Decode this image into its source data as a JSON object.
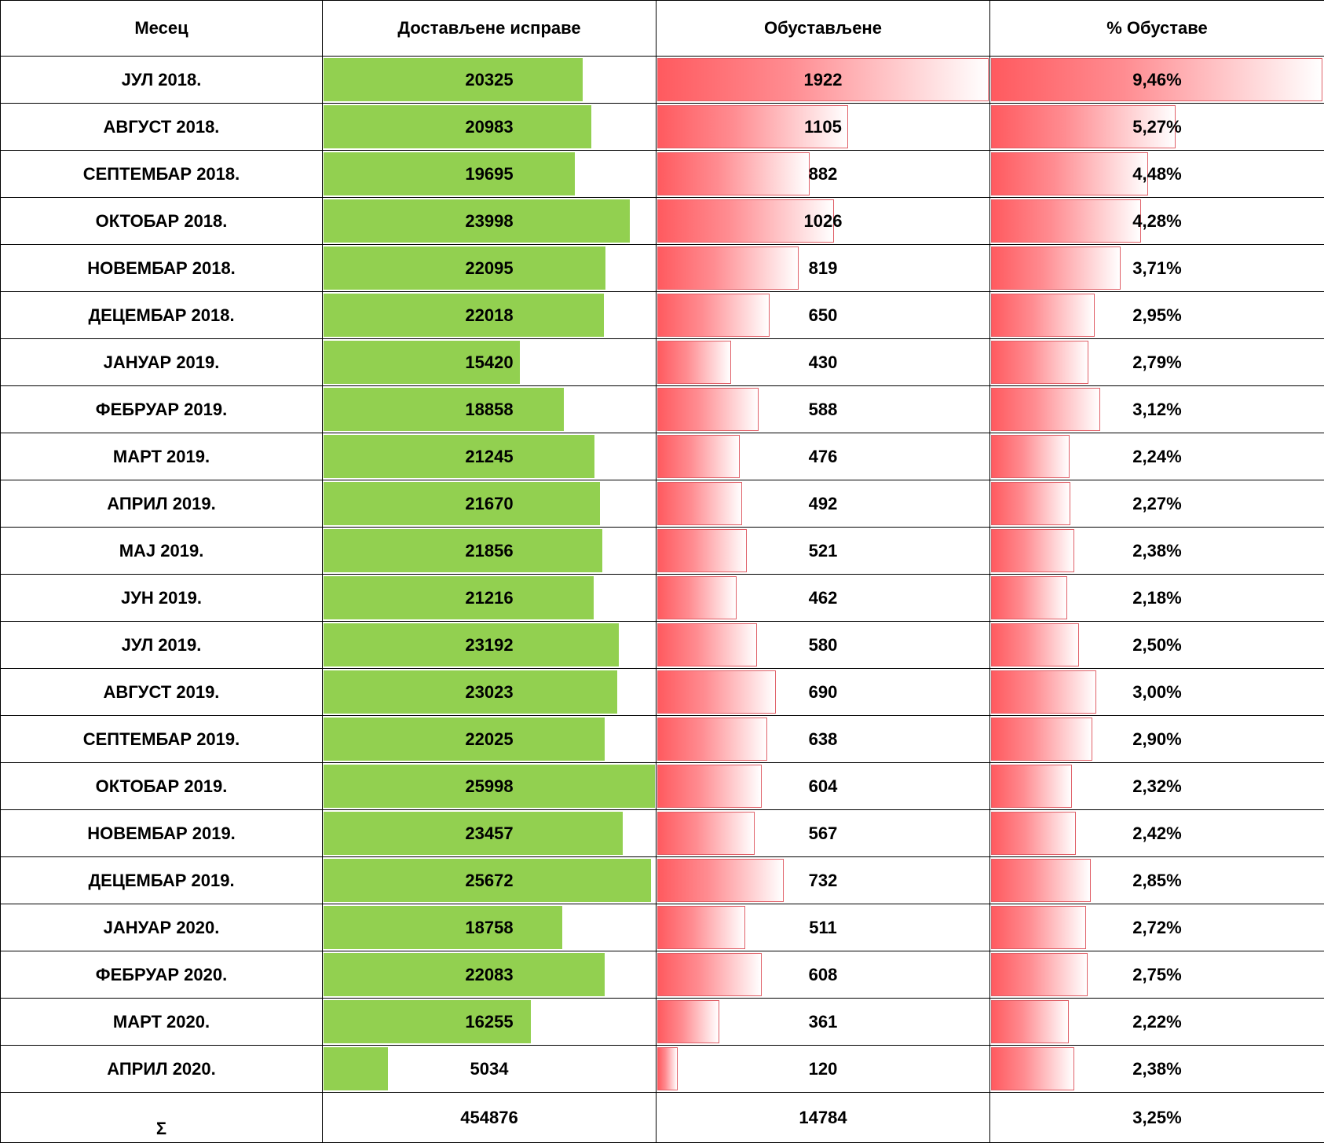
{
  "chart_data": {
    "type": "table",
    "columns": [
      "Месец",
      "Достављене исправе",
      "Обустављене",
      "% Обуставе"
    ],
    "rows": [
      {
        "month": "ЈУЛ 2018.",
        "delivered": 20325,
        "delivered_label": "20325",
        "suspended": 1922,
        "suspended_label": "1922",
        "pct": 9.46,
        "pct_label": "9,46%"
      },
      {
        "month": "АВГУСТ 2018.",
        "delivered": 20983,
        "delivered_label": "20983",
        "suspended": 1105,
        "suspended_label": "1105",
        "pct": 5.27,
        "pct_label": "5,27%"
      },
      {
        "month": "СЕПТЕМБАР 2018.",
        "delivered": 19695,
        "delivered_label": "19695",
        "suspended": 882,
        "suspended_label": "882",
        "pct": 4.48,
        "pct_label": "4,48%"
      },
      {
        "month": "ОКТОБАР 2018.",
        "delivered": 23998,
        "delivered_label": "23998",
        "suspended": 1026,
        "suspended_label": "1026",
        "pct": 4.28,
        "pct_label": "4,28%"
      },
      {
        "month": "НОВЕМБАР 2018.",
        "delivered": 22095,
        "delivered_label": "22095",
        "suspended": 819,
        "suspended_label": "819",
        "pct": 3.71,
        "pct_label": "3,71%"
      },
      {
        "month": "ДЕЦЕМБАР 2018.",
        "delivered": 22018,
        "delivered_label": "22018",
        "suspended": 650,
        "suspended_label": "650",
        "pct": 2.95,
        "pct_label": "2,95%"
      },
      {
        "month": "ЈАНУАР 2019.",
        "delivered": 15420,
        "delivered_label": "15420",
        "suspended": 430,
        "suspended_label": "430",
        "pct": 2.79,
        "pct_label": "2,79%"
      },
      {
        "month": "ФЕБРУАР 2019.",
        "delivered": 18858,
        "delivered_label": "18858",
        "suspended": 588,
        "suspended_label": "588",
        "pct": 3.12,
        "pct_label": "3,12%"
      },
      {
        "month": "МАРТ 2019.",
        "delivered": 21245,
        "delivered_label": "21245",
        "suspended": 476,
        "suspended_label": "476",
        "pct": 2.24,
        "pct_label": "2,24%"
      },
      {
        "month": "АПРИЛ 2019.",
        "delivered": 21670,
        "delivered_label": "21670",
        "suspended": 492,
        "suspended_label": "492",
        "pct": 2.27,
        "pct_label": "2,27%"
      },
      {
        "month": "МАЈ 2019.",
        "delivered": 21856,
        "delivered_label": "21856",
        "suspended": 521,
        "suspended_label": "521",
        "pct": 2.38,
        "pct_label": "2,38%"
      },
      {
        "month": "ЈУН 2019.",
        "delivered": 21216,
        "delivered_label": "21216",
        "suspended": 462,
        "suspended_label": "462",
        "pct": 2.18,
        "pct_label": "2,18%"
      },
      {
        "month": "ЈУЛ 2019.",
        "delivered": 23192,
        "delivered_label": "23192",
        "suspended": 580,
        "suspended_label": "580",
        "pct": 2.5,
        "pct_label": "2,50%"
      },
      {
        "month": "АВГУСТ 2019.",
        "delivered": 23023,
        "delivered_label": "23023",
        "suspended": 690,
        "suspended_label": "690",
        "pct": 3.0,
        "pct_label": "3,00%"
      },
      {
        "month": "СЕПТЕМБАР 2019.",
        "delivered": 22025,
        "delivered_label": "22025",
        "suspended": 638,
        "suspended_label": "638",
        "pct": 2.9,
        "pct_label": "2,90%"
      },
      {
        "month": "ОКТОБАР 2019.",
        "delivered": 25998,
        "delivered_label": "25998",
        "suspended": 604,
        "suspended_label": "604",
        "pct": 2.32,
        "pct_label": "2,32%"
      },
      {
        "month": "НОВЕМБАР 2019.",
        "delivered": 23457,
        "delivered_label": "23457",
        "suspended": 567,
        "suspended_label": "567",
        "pct": 2.42,
        "pct_label": "2,42%"
      },
      {
        "month": "ДЕЦЕМБАР 2019.",
        "delivered": 25672,
        "delivered_label": "25672",
        "suspended": 732,
        "suspended_label": "732",
        "pct": 2.85,
        "pct_label": "2,85%"
      },
      {
        "month": "ЈАНУАР 2020.",
        "delivered": 18758,
        "delivered_label": "18758",
        "suspended": 511,
        "suspended_label": "511",
        "pct": 2.72,
        "pct_label": "2,72%"
      },
      {
        "month": "ФЕБРУАР 2020.",
        "delivered": 22083,
        "delivered_label": "22083",
        "suspended": 608,
        "suspended_label": "608",
        "pct": 2.75,
        "pct_label": "2,75%"
      },
      {
        "month": "МАРТ 2020.",
        "delivered": 16255,
        "delivered_label": "16255",
        "suspended": 361,
        "suspended_label": "361",
        "pct": 2.22,
        "pct_label": "2,22%"
      },
      {
        "month": "АПРИЛ 2020.",
        "delivered": 5034,
        "delivered_label": "5034",
        "suspended": 120,
        "suspended_label": "120",
        "pct": 2.38,
        "pct_label": "2,38%"
      }
    ],
    "total": {
      "label": "Σ",
      "delivered": "454876",
      "suspended": "14784",
      "pct": "3,25%"
    }
  },
  "colors": {
    "delivered_bar": "#92d050",
    "suspended_bar_start": "#ff5a5f",
    "suspended_bar_end": "#ffffff"
  }
}
